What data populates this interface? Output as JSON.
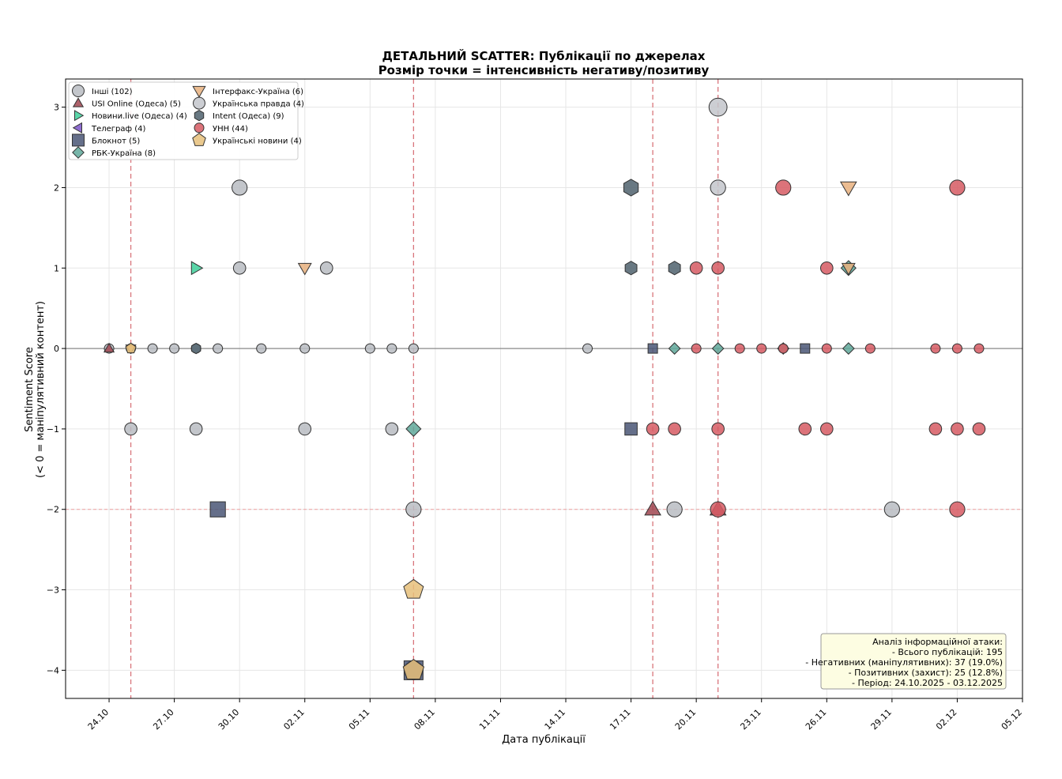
{
  "chart_data": {
    "type": "scatter",
    "title": "ДЕТАЛЬНИЙ SCATTER: Публікації по джерелах",
    "subtitle": "Розмір точки = інтенсивність негативу/позитиву",
    "xlabel": "Дата публікації",
    "ylabel_line1": "Sentiment Score",
    "ylabel_line2": "(< 0 = маніпулятивний контент)",
    "x_axis": "date",
    "xlim": [
      "2025-10-22",
      "2025-12-05"
    ],
    "ylim": [
      -4.35,
      3.35
    ],
    "x_ticks": [
      "2025-10-24",
      "2025-10-27",
      "2025-10-30",
      "2025-11-02",
      "2025-11-05",
      "2025-11-08",
      "2025-11-11",
      "2025-11-14",
      "2025-11-17",
      "2025-11-20",
      "2025-11-23",
      "2025-11-26",
      "2025-11-29",
      "2025-12-02",
      "2025-12-05"
    ],
    "x_tick_labels": [
      "24.10",
      "27.10",
      "30.10",
      "02.11",
      "05.11",
      "08.11",
      "11.11",
      "14.11",
      "17.11",
      "20.11",
      "23.11",
      "26.11",
      "29.11",
      "02.12",
      "05.12"
    ],
    "y_ticks": [
      3,
      2,
      1,
      0,
      -1,
      -2,
      -3,
      -4
    ],
    "y_tick_labels": [
      "3",
      "2",
      "1",
      "0",
      "−1",
      "−2",
      "−3",
      "−4"
    ],
    "grid": true,
    "legend_position": "top-left",
    "reference_lines": {
      "vertical_dates": [
        "2025-10-25",
        "2025-11-07",
        "2025-11-18",
        "2025-11-21"
      ],
      "horizontal_y": -2,
      "zero_line_y": 0
    },
    "series": [
      {
        "name": "Інші (102)",
        "marker": "circle",
        "color": "#b8bcc2",
        "points": [
          [
            "2025-10-24",
            0
          ],
          [
            "2025-10-25",
            0
          ],
          [
            "2025-10-26",
            0
          ],
          [
            "2025-10-27",
            0
          ],
          [
            "2025-10-28",
            0
          ],
          [
            "2025-10-29",
            0
          ],
          [
            "2025-10-31",
            0
          ],
          [
            "2025-11-02",
            0
          ],
          [
            "2025-11-05",
            0
          ],
          [
            "2025-11-06",
            0
          ],
          [
            "2025-11-07",
            0
          ],
          [
            "2025-11-15",
            0
          ],
          [
            "2025-10-25",
            -1
          ],
          [
            "2025-10-28",
            -1
          ],
          [
            "2025-11-02",
            -1
          ],
          [
            "2025-11-06",
            -1
          ],
          [
            "2025-10-30",
            1
          ],
          [
            "2025-11-03",
            1
          ],
          [
            "2025-10-30",
            2
          ],
          [
            "2025-11-07",
            -2
          ],
          [
            "2025-11-19",
            -2
          ],
          [
            "2025-11-29",
            -2
          ],
          [
            "2025-11-07",
            -4
          ]
        ]
      },
      {
        "name": "USI Online (Одеса) (5)",
        "marker": "triangle-up",
        "color": "#a04550",
        "points": [
          [
            "2025-10-24",
            0
          ],
          [
            "2025-11-18",
            -2
          ],
          [
            "2025-11-21",
            -2
          ]
        ]
      },
      {
        "name": "Новини.live (Одеса) (4)",
        "marker": "triangle-right",
        "color": "#3ecf9a",
        "points": [
          [
            "2025-10-28",
            1
          ]
        ]
      },
      {
        "name": "Телеграф (4)",
        "marker": "triangle-left",
        "color": "#7b55c8",
        "points": []
      },
      {
        "name": "Блокнот (5)",
        "marker": "square",
        "color": "#4a5675",
        "points": [
          [
            "2025-10-29",
            -2
          ],
          [
            "2025-11-17",
            -1
          ],
          [
            "2025-11-18",
            0
          ],
          [
            "2025-11-25",
            0
          ],
          [
            "2025-11-07",
            -4
          ]
        ]
      },
      {
        "name": "РБК-Україна (8)",
        "marker": "diamond",
        "color": "#5fa89a",
        "points": [
          [
            "2025-11-07",
            -1
          ],
          [
            "2025-11-19",
            0
          ],
          [
            "2025-11-21",
            0
          ],
          [
            "2025-11-24",
            0
          ],
          [
            "2025-11-27",
            1
          ],
          [
            "2025-11-27",
            0
          ]
        ]
      },
      {
        "name": "Інтерфакс-Україна (6)",
        "marker": "triangle-down",
        "color": "#e8b07e",
        "points": [
          [
            "2025-11-02",
            1
          ],
          [
            "2025-11-27",
            2
          ],
          [
            "2025-11-27",
            1
          ],
          [
            "2025-10-25",
            0
          ]
        ]
      },
      {
        "name": "Українська правда (4)",
        "marker": "circle",
        "color": "#c3c6cb",
        "points": [
          [
            "2025-11-21",
            3
          ],
          [
            "2025-11-21",
            2
          ]
        ]
      },
      {
        "name": "Intent (Одеса) (9)",
        "marker": "hexagon",
        "color": "#4f626d",
        "points": [
          [
            "2025-11-17",
            2
          ],
          [
            "2025-11-17",
            1
          ],
          [
            "2025-11-19",
            1
          ],
          [
            "2025-10-28",
            0
          ]
        ]
      },
      {
        "name": "УНН (44)",
        "marker": "circle",
        "color": "#d65a63",
        "points": [
          [
            "2025-11-20",
            0
          ],
          [
            "2025-11-22",
            0
          ],
          [
            "2025-11-23",
            0
          ],
          [
            "2025-11-24",
            0
          ],
          [
            "2025-11-26",
            0
          ],
          [
            "2025-11-28",
            0
          ],
          [
            "2025-12-01",
            0
          ],
          [
            "2025-12-02",
            0
          ],
          [
            "2025-12-03",
            0
          ],
          [
            "2025-11-18",
            -1
          ],
          [
            "2025-11-19",
            -1
          ],
          [
            "2025-11-21",
            -1
          ],
          [
            "2025-11-25",
            -1
          ],
          [
            "2025-11-26",
            -1
          ],
          [
            "2025-12-01",
            -1
          ],
          [
            "2025-12-02",
            -1
          ],
          [
            "2025-12-03",
            -1
          ],
          [
            "2025-11-20",
            1
          ],
          [
            "2025-11-21",
            1
          ],
          [
            "2025-11-26",
            1
          ],
          [
            "2025-11-24",
            2
          ],
          [
            "2025-12-02",
            2
          ],
          [
            "2025-11-21",
            -2
          ],
          [
            "2025-12-02",
            -2
          ]
        ]
      },
      {
        "name": "Українські новини (4)",
        "marker": "pentagon",
        "color": "#e6c07a",
        "points": [
          [
            "2025-11-07",
            -3
          ],
          [
            "2025-11-07",
            -4
          ],
          [
            "2025-10-25",
            0
          ]
        ]
      }
    ],
    "annotation": {
      "lines": [
        "Аналіз інформаційної атаки:",
        "- Всього публікацій: 195",
        "- Негативних (маніпулятивних): 37 (19.0%)",
        "- Позитивних (захист): 25 (12.8%)",
        "- Період: 24.10.2025 - 03.12.2025"
      ],
      "position": "bottom-right"
    }
  }
}
